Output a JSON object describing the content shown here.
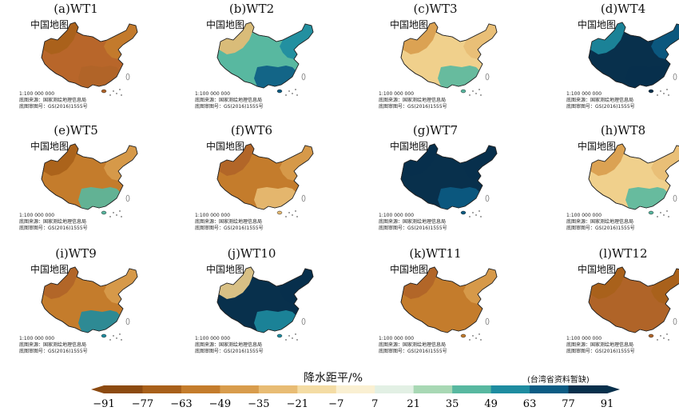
{
  "colors": {
    "scale": [
      "#8c4a10",
      "#a8601a",
      "#c47c2c",
      "#d89c4c",
      "#e8bc74",
      "#f4dca4",
      "#faf0d2",
      "#e2f0e4",
      "#a8d8b4",
      "#58b8a0",
      "#1e8ca0",
      "#0c5c84",
      "#08304c"
    ],
    "outline": "#222222"
  },
  "panels": [
    {
      "title": "(a)WT1",
      "map_name": "中国地图",
      "fill": "#b8662a",
      "east_fill": "#c47c2c",
      "south_fill": "#b06428",
      "sw_fill": "#a8601a",
      "scale": "1:100 000 000",
      "source": "底图来源：国家测绘地理信息局",
      "number": "底图审图号：GS(2016)1555号"
    },
    {
      "title": "(b)WT2",
      "map_name": "中国地图",
      "fill": "#58b8a0",
      "east_fill": "#1e8ca0",
      "south_fill": "#0c5c84",
      "sw_fill": "#e8bc74",
      "scale": "1:100 000 000",
      "source": "底图来源：国家测绘地理信息局",
      "number": "底图审图号：GS(2016)1555号"
    },
    {
      "title": "(c)WT3",
      "map_name": "中国地图",
      "fill": "#f0d08c",
      "east_fill": "#e8bc74",
      "south_fill": "#58b8a0",
      "sw_fill": "#d89c4c",
      "scale": "1:100 000 000",
      "source": "底图来源：国家测绘地理信息局",
      "number": "底图审图号：GS(2016)1555号"
    },
    {
      "title": "(d)WT4",
      "map_name": "中国地图",
      "fill": "#08304c",
      "east_fill": "#0c5c84",
      "south_fill": "#08304c",
      "sw_fill": "#1e8ca0",
      "scale": "1:100 000 000",
      "source": "底图来源：国家测绘地理信息局",
      "number": "底图审图号：GS(2016)1555号"
    },
    {
      "title": "(e)WT5",
      "map_name": "中国地图",
      "fill": "#c47c2c",
      "east_fill": "#d89c4c",
      "south_fill": "#58b8a0",
      "sw_fill": "#a8601a",
      "scale": "1:100 000 000",
      "source": "底图来源：国家测绘地理信息局",
      "number": "底图审图号：GS(2016)1555号"
    },
    {
      "title": "(f)WT6",
      "map_name": "中国地图",
      "fill": "#c47c2c",
      "east_fill": "#d89c4c",
      "south_fill": "#e8bc74",
      "sw_fill": "#b06428",
      "scale": "1:100 000 000",
      "source": "底图来源：国家测绘地理信息局",
      "number": "底图审图号：GS(2016)1555号"
    },
    {
      "title": "(g)WT7",
      "map_name": "中国地图",
      "fill": "#08304c",
      "east_fill": "#08304c",
      "south_fill": "#0c5c84",
      "sw_fill": "#08304c",
      "scale": "1:100 000 000",
      "source": "底图来源：国家测绘地理信息局",
      "number": "底图审图号：GS(2016)1555号"
    },
    {
      "title": "(h)WT8",
      "map_name": "中国地图",
      "fill": "#f0d08c",
      "east_fill": "#e8bc74",
      "south_fill": "#58b8a0",
      "sw_fill": "#d89c4c",
      "scale": "1:100 000 000",
      "source": "底图来源：国家测绘地理信息局",
      "number": "底图审图号：GS(2016)1555号"
    },
    {
      "title": "(i)WT9",
      "map_name": "中国地图",
      "fill": "#c47c2c",
      "east_fill": "#d89c4c",
      "south_fill": "#1e8ca0",
      "sw_fill": "#b06428",
      "scale": "1:100 000 000",
      "source": "底图来源：国家测绘地理信息局",
      "number": "底图审图号：GS(2016)1555号"
    },
    {
      "title": "(j)WT10",
      "map_name": "中国地图",
      "fill": "#08304c",
      "east_fill": "#08304c",
      "south_fill": "#1e8ca0",
      "sw_fill": "#f0d08c",
      "scale": "1:100 000 000",
      "source": "底图来源：国家测绘地理信息局",
      "number": "底图审图号：GS(2016)1555号"
    },
    {
      "title": "(k)WT11",
      "map_name": "中国地图",
      "fill": "#c47c2c",
      "east_fill": "#d89c4c",
      "south_fill": "#c47c2c",
      "sw_fill": "#b06428",
      "scale": "1:100 000 000",
      "source": "底图来源：国家测绘地理信息局",
      "number": "底图审图号：GS(2016)1555号"
    },
    {
      "title": "(l)WT12",
      "map_name": "中国地图",
      "fill": "#b06428",
      "east_fill": "#a8601a",
      "south_fill": "#b06428",
      "sw_fill": "#a8601a",
      "scale": "1:100 000 000",
      "source": "底图来源：国家测绘地理信息局",
      "number": "底图审图号：GS(2016)1555号"
    }
  ],
  "legend": {
    "title": "降水距平/%",
    "note": "(台湾省资料暂缺)",
    "ticks": [
      "−91",
      "−77",
      "−63",
      "−49",
      "−35",
      "−21",
      "−7",
      "7",
      "21",
      "35",
      "49",
      "63",
      "77",
      "91"
    ]
  }
}
